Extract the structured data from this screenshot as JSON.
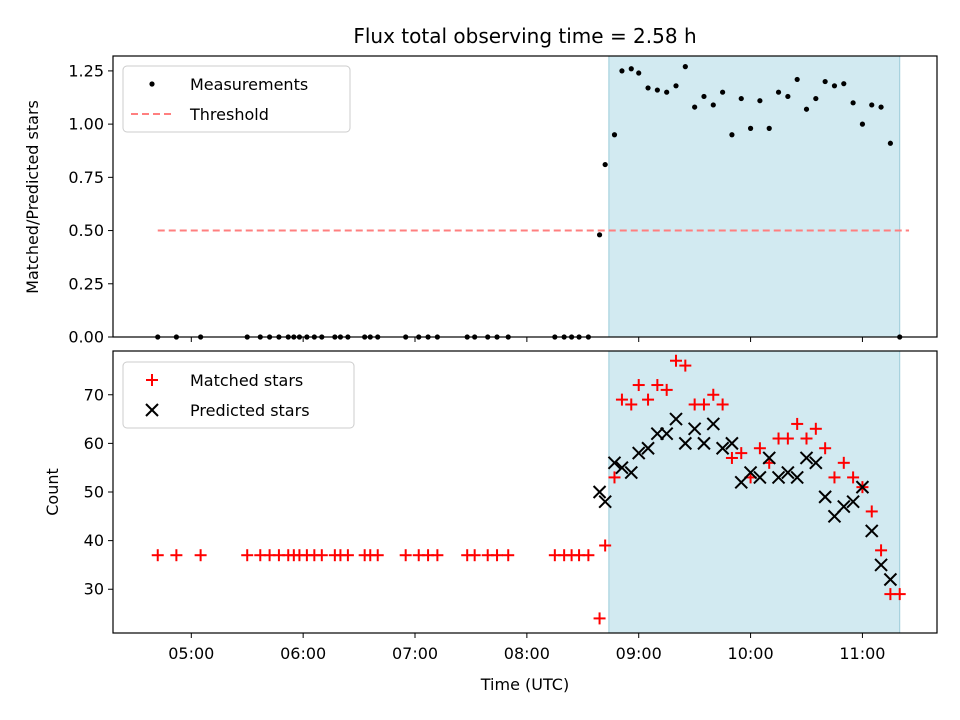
{
  "chart_data": [
    {
      "type": "scatter",
      "title": "Flux total observing time = 2.58 h",
      "xlabel": "",
      "ylabel": "Matched/Predicted stars",
      "ylim": [
        0,
        1.32
      ],
      "yticks": [
        "0.00",
        "0.25",
        "0.50",
        "0.75",
        "1.00",
        "1.25"
      ],
      "x_axis_type": "time",
      "xlim": [
        "04:18",
        "11:40"
      ],
      "observing_window": [
        "08:44",
        "11:20"
      ],
      "legend_placement": "upper-left",
      "series": [
        {
          "name": "Measurements",
          "marker": "dot",
          "color": "#000000",
          "points": [
            [
              "04:42",
              0.0
            ],
            [
              "04:52",
              0.0
            ],
            [
              "05:05",
              0.0
            ],
            [
              "05:30",
              0.0
            ],
            [
              "05:37",
              0.0
            ],
            [
              "05:42",
              0.0
            ],
            [
              "05:47",
              0.0
            ],
            [
              "05:52",
              0.0
            ],
            [
              "05:55",
              0.0
            ],
            [
              "05:58",
              0.0
            ],
            [
              "06:02",
              0.0
            ],
            [
              "06:06",
              0.0
            ],
            [
              "06:10",
              0.0
            ],
            [
              "06:17",
              0.0
            ],
            [
              "06:20",
              0.0
            ],
            [
              "06:24",
              0.0
            ],
            [
              "06:33",
              0.0
            ],
            [
              "06:36",
              0.0
            ],
            [
              "06:40",
              0.0
            ],
            [
              "06:55",
              0.0
            ],
            [
              "07:02",
              0.0
            ],
            [
              "07:07",
              0.0
            ],
            [
              "07:12",
              0.0
            ],
            [
              "07:28",
              0.0
            ],
            [
              "07:32",
              0.0
            ],
            [
              "07:39",
              0.0
            ],
            [
              "07:44",
              0.0
            ],
            [
              "07:50",
              0.0
            ],
            [
              "08:15",
              0.0
            ],
            [
              "08:20",
              0.0
            ],
            [
              "08:24",
              0.0
            ],
            [
              "08:28",
              0.0
            ],
            [
              "08:33",
              0.0
            ],
            [
              "08:39",
              0.48
            ],
            [
              "08:42",
              0.81
            ],
            [
              "08:47",
              0.95
            ],
            [
              "08:51",
              1.25
            ],
            [
              "08:56",
              1.26
            ],
            [
              "09:00",
              1.24
            ],
            [
              "09:05",
              1.17
            ],
            [
              "09:10",
              1.16
            ],
            [
              "09:15",
              1.15
            ],
            [
              "09:20",
              1.18
            ],
            [
              "09:25",
              1.27
            ],
            [
              "09:30",
              1.08
            ],
            [
              "09:35",
              1.13
            ],
            [
              "09:40",
              1.09
            ],
            [
              "09:45",
              1.15
            ],
            [
              "09:50",
              0.95
            ],
            [
              "09:55",
              1.12
            ],
            [
              "10:00",
              0.98
            ],
            [
              "10:05",
              1.11
            ],
            [
              "10:10",
              0.98
            ],
            [
              "10:15",
              1.15
            ],
            [
              "10:20",
              1.13
            ],
            [
              "10:25",
              1.21
            ],
            [
              "10:30",
              1.07
            ],
            [
              "10:35",
              1.12
            ],
            [
              "10:40",
              1.2
            ],
            [
              "10:45",
              1.18
            ],
            [
              "10:50",
              1.19
            ],
            [
              "10:55",
              1.1
            ],
            [
              "11:00",
              1.0
            ],
            [
              "11:05",
              1.09
            ],
            [
              "11:10",
              1.08
            ],
            [
              "11:15",
              0.91
            ],
            [
              "11:20",
              0.0
            ]
          ]
        },
        {
          "name": "Threshold",
          "marker": "dashed-line",
          "color": "#ff7f7f",
          "points": [
            [
              "04:42",
              0.5
            ],
            [
              "11:25",
              0.5
            ]
          ]
        }
      ]
    },
    {
      "type": "scatter",
      "title": "",
      "xlabel": "Time (UTC)",
      "ylabel": "Count",
      "ylim": [
        21,
        79
      ],
      "yticks": [
        "30",
        "40",
        "50",
        "60",
        "70"
      ],
      "xticks": [
        "05:00",
        "06:00",
        "07:00",
        "08:00",
        "09:00",
        "10:00",
        "11:00"
      ],
      "x_axis_type": "time",
      "xlim": [
        "04:18",
        "11:40"
      ],
      "observing_window": [
        "08:44",
        "11:20"
      ],
      "legend_placement": "upper-left",
      "series": [
        {
          "name": "Matched stars",
          "marker": "plus",
          "color": "#ff0000",
          "points": [
            [
              "04:42",
              37
            ],
            [
              "04:52",
              37
            ],
            [
              "05:05",
              37
            ],
            [
              "05:30",
              37
            ],
            [
              "05:37",
              37
            ],
            [
              "05:42",
              37
            ],
            [
              "05:47",
              37
            ],
            [
              "05:52",
              37
            ],
            [
              "05:55",
              37
            ],
            [
              "05:58",
              37
            ],
            [
              "06:02",
              37
            ],
            [
              "06:06",
              37
            ],
            [
              "06:10",
              37
            ],
            [
              "06:17",
              37
            ],
            [
              "06:20",
              37
            ],
            [
              "06:24",
              37
            ],
            [
              "06:33",
              37
            ],
            [
              "06:36",
              37
            ],
            [
              "06:40",
              37
            ],
            [
              "06:55",
              37
            ],
            [
              "07:02",
              37
            ],
            [
              "07:07",
              37
            ],
            [
              "07:12",
              37
            ],
            [
              "07:28",
              37
            ],
            [
              "07:32",
              37
            ],
            [
              "07:39",
              37
            ],
            [
              "07:44",
              37
            ],
            [
              "07:50",
              37
            ],
            [
              "08:15",
              37
            ],
            [
              "08:20",
              37
            ],
            [
              "08:24",
              37
            ],
            [
              "08:28",
              37
            ],
            [
              "08:33",
              37
            ],
            [
              "08:39",
              24
            ],
            [
              "08:42",
              39
            ],
            [
              "08:47",
              53
            ],
            [
              "08:51",
              69
            ],
            [
              "08:56",
              68
            ],
            [
              "09:00",
              72
            ],
            [
              "09:05",
              69
            ],
            [
              "09:10",
              72
            ],
            [
              "09:15",
              71
            ],
            [
              "09:20",
              77
            ],
            [
              "09:25",
              76
            ],
            [
              "09:30",
              68
            ],
            [
              "09:35",
              68
            ],
            [
              "09:40",
              70
            ],
            [
              "09:45",
              68
            ],
            [
              "09:50",
              57
            ],
            [
              "09:55",
              58
            ],
            [
              "10:00",
              53
            ],
            [
              "10:05",
              59
            ],
            [
              "10:10",
              56
            ],
            [
              "10:15",
              61
            ],
            [
              "10:20",
              61
            ],
            [
              "10:25",
              64
            ],
            [
              "10:30",
              61
            ],
            [
              "10:35",
              63
            ],
            [
              "10:40",
              59
            ],
            [
              "10:45",
              53
            ],
            [
              "10:50",
              56
            ],
            [
              "10:55",
              53
            ],
            [
              "11:00",
              51
            ],
            [
              "11:05",
              46
            ],
            [
              "11:10",
              38
            ],
            [
              "11:15",
              29
            ],
            [
              "11:20",
              29
            ]
          ]
        },
        {
          "name": "Predicted stars",
          "marker": "x",
          "color": "#000000",
          "points": [
            [
              "08:39",
              50
            ],
            [
              "08:42",
              48
            ],
            [
              "08:47",
              56
            ],
            [
              "08:51",
              55
            ],
            [
              "08:56",
              54
            ],
            [
              "09:00",
              58
            ],
            [
              "09:05",
              59
            ],
            [
              "09:10",
              62
            ],
            [
              "09:15",
              62
            ],
            [
              "09:20",
              65
            ],
            [
              "09:25",
              60
            ],
            [
              "09:30",
              63
            ],
            [
              "09:35",
              60
            ],
            [
              "09:40",
              64
            ],
            [
              "09:45",
              59
            ],
            [
              "09:50",
              60
            ],
            [
              "09:55",
              52
            ],
            [
              "10:00",
              54
            ],
            [
              "10:05",
              53
            ],
            [
              "10:10",
              57
            ],
            [
              "10:15",
              53
            ],
            [
              "10:20",
              54
            ],
            [
              "10:25",
              53
            ],
            [
              "10:30",
              57
            ],
            [
              "10:35",
              56
            ],
            [
              "10:40",
              49
            ],
            [
              "10:45",
              45
            ],
            [
              "10:50",
              47
            ],
            [
              "10:55",
              48
            ],
            [
              "11:00",
              51
            ],
            [
              "11:05",
              42
            ],
            [
              "11:10",
              35
            ],
            [
              "11:15",
              32
            ]
          ]
        }
      ]
    }
  ]
}
